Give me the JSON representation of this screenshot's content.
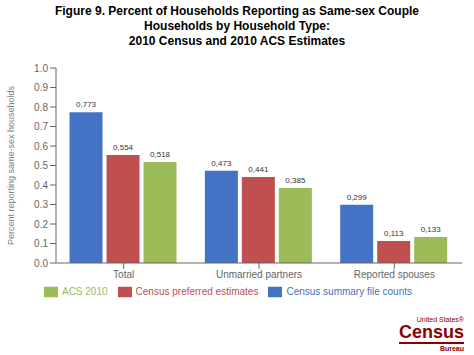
{
  "chart_data": {
    "type": "bar",
    "title": "Figure 9. Percent of Households Reporting as Same-sex Couple\nHouseholds by Household Type:\n2010 Census and 2010 ACS Estimates",
    "ylabel": "Percent reporting same-sex households",
    "categories": [
      "Total",
      "Unmarried partners",
      "Reported spouses"
    ],
    "series": [
      {
        "name": "Census summary file counts",
        "color": "#4472C4",
        "values": [
          0.773,
          0.473,
          0.299
        ],
        "value_labels": [
          "0,773",
          "0,473",
          "0,299"
        ]
      },
      {
        "name": "Census preferred estimates",
        "color": "#C0504D",
        "values": [
          0.554,
          0.441,
          0.113
        ],
        "value_labels": [
          "0,554",
          "0,441",
          "0,113"
        ]
      },
      {
        "name": "ACS 2010",
        "color": "#9BBB59",
        "values": [
          0.518,
          0.385,
          0.133
        ],
        "value_labels": [
          "0,518",
          "0,385",
          "0,133"
        ]
      }
    ],
    "ylim": [
      0.0,
      1.0
    ],
    "yticks": [
      {
        "value": 0,
        "label": "0.0"
      },
      0.1,
      0.2,
      0.3,
      0.4,
      0.5,
      0.6,
      0.7,
      0.8,
      0.9,
      {
        "value": 1,
        "label": "1.0"
      }
    ],
    "grid": false,
    "legend": "bottom",
    "data_labels": true,
    "annotations": [
      "United States®",
      "Census",
      "Bureau"
    ]
  }
}
